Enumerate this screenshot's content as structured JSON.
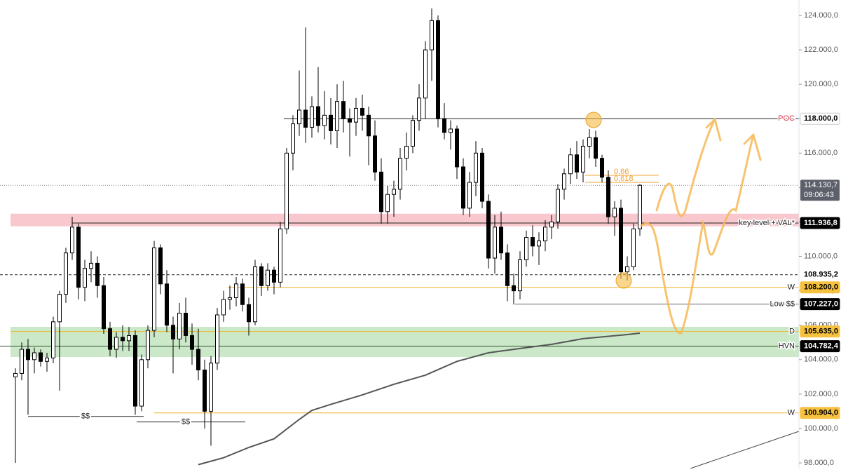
{
  "chart_data": {
    "type": "candlestick",
    "ylim": [
      97676,
      124896
    ],
    "yticks": [
      {
        "value": 98000,
        "label": "98.000,0"
      },
      {
        "value": 100000,
        "label": "100.000,0"
      },
      {
        "value": 102000,
        "label": "102.000,0"
      },
      {
        "value": 104000,
        "label": "104.000,0"
      },
      {
        "value": 106000,
        "label": "106.000,0"
      },
      {
        "value": 108000,
        "label": "108.000,0"
      },
      {
        "value": 110000,
        "label": "110.000,0"
      },
      {
        "value": 112000,
        "label": "112.000,0"
      },
      {
        "value": 114000,
        "label": "114.000,0"
      },
      {
        "value": 116000,
        "label": "116.000,0"
      },
      {
        "value": 118000,
        "label": "118.000,0"
      },
      {
        "value": 120000,
        "label": "120.000,0"
      },
      {
        "value": 122000,
        "label": "122.000,0"
      },
      {
        "value": 124000,
        "label": "124.000,0"
      }
    ],
    "up_color": "#ffffff",
    "down_color": "#000000",
    "ohlc": [
      [
        103000,
        103500,
        98000,
        103200
      ],
      [
        103200,
        105000,
        102800,
        104600
      ],
      [
        104600,
        105200,
        100800,
        104000
      ],
      [
        104000,
        104700,
        103200,
        104400
      ],
      [
        104400,
        104600,
        103600,
        103900
      ],
      [
        103900,
        104400,
        103300,
        104100
      ],
      [
        104100,
        106500,
        103800,
        106200
      ],
      [
        106200,
        108000,
        102200,
        107800
      ],
      [
        107800,
        110500,
        107300,
        110200
      ],
      [
        110200,
        112300,
        109800,
        111700
      ],
      [
        111700,
        111900,
        107500,
        108200
      ],
      [
        108200,
        109800,
        107400,
        109300
      ],
      [
        109300,
        110300,
        108500,
        109600
      ],
      [
        109600,
        110000,
        107600,
        108300
      ],
      [
        108300,
        108800,
        105500,
        105800
      ],
      [
        105800,
        106200,
        104200,
        104600
      ],
      [
        104600,
        105600,
        104100,
        105300
      ],
      [
        105300,
        106000,
        104500,
        105100
      ],
      [
        105100,
        105900,
        104500,
        105400
      ],
      [
        105400,
        105700,
        100800,
        101300
      ],
      [
        101300,
        104300,
        101000,
        104000
      ],
      [
        104000,
        106000,
        103500,
        105700
      ],
      [
        105700,
        110900,
        105300,
        110500
      ],
      [
        110500,
        110700,
        107800,
        108400
      ],
      [
        108400,
        109200,
        105600,
        106000
      ],
      [
        106000,
        106500,
        103200,
        105200
      ],
      [
        105200,
        107300,
        104600,
        106700
      ],
      [
        106700,
        107600,
        105000,
        105400
      ],
      [
        105400,
        106100,
        103700,
        104600
      ],
      [
        104600,
        105800,
        102800,
        103400
      ],
      [
        103400,
        104000,
        100000,
        101000
      ],
      [
        101000,
        104200,
        99000,
        103800
      ],
      [
        103800,
        107000,
        103400,
        106600
      ],
      [
        106600,
        108000,
        106200,
        107500
      ],
      [
        107500,
        108300,
        106900,
        107600
      ],
      [
        107600,
        108800,
        107100,
        108400
      ],
      [
        108400,
        108700,
        106800,
        107200
      ],
      [
        107200,
        107600,
        105400,
        106200
      ],
      [
        106200,
        109800,
        106000,
        109400
      ],
      [
        109400,
        109600,
        107700,
        108300
      ],
      [
        108300,
        109600,
        108000,
        109200
      ],
      [
        109200,
        109400,
        107800,
        108500
      ],
      [
        108500,
        112000,
        108200,
        111600
      ],
      [
        111600,
        116300,
        111300,
        116000
      ],
      [
        116000,
        118200,
        115000,
        117700
      ],
      [
        117700,
        120800,
        117000,
        118500
      ],
      [
        118500,
        123300,
        116600,
        117500
      ],
      [
        117500,
        119300,
        116900,
        118700
      ],
      [
        118700,
        121000,
        117200,
        117600
      ],
      [
        117600,
        119600,
        116800,
        118200
      ],
      [
        118200,
        119200,
        116500,
        117300
      ],
      [
        117300,
        120000,
        116300,
        119000
      ],
      [
        119000,
        120200,
        117200,
        118000
      ],
      [
        118000,
        118600,
        115800,
        117800
      ],
      [
        117800,
        119200,
        117000,
        118600
      ],
      [
        118600,
        119400,
        117300,
        118200
      ],
      [
        118200,
        118700,
        115300,
        117000
      ],
      [
        117000,
        117900,
        114400,
        114900
      ],
      [
        114900,
        115700,
        111900,
        112600
      ],
      [
        112600,
        114100,
        111900,
        113600
      ],
      [
        113600,
        114400,
        112300,
        113900
      ],
      [
        113900,
        116300,
        113300,
        115700
      ],
      [
        115700,
        117200,
        115000,
        116400
      ],
      [
        116400,
        118200,
        116000,
        117900
      ],
      [
        117900,
        120000,
        117300,
        119200
      ],
      [
        119200,
        122500,
        118000,
        122000
      ],
      [
        122000,
        124400,
        120200,
        123700
      ],
      [
        123700,
        124000,
        117500,
        118000
      ],
      [
        118000,
        118900,
        116800,
        117200
      ],
      [
        117200,
        117900,
        116200,
        117400
      ],
      [
        117400,
        117600,
        114500,
        115200
      ],
      [
        115200,
        115700,
        112400,
        112800
      ],
      [
        112800,
        114900,
        112300,
        114300
      ],
      [
        114300,
        116700,
        113500,
        116000
      ],
      [
        116000,
        116300,
        112800,
        113200
      ],
      [
        113200,
        113600,
        109300,
        109900
      ],
      [
        109900,
        112400,
        109000,
        111700
      ],
      [
        111700,
        112600,
        109800,
        110200
      ],
      [
        110200,
        110700,
        107400,
        108300
      ],
      [
        108300,
        109000,
        107200,
        108000
      ],
      [
        108000,
        110300,
        107500,
        109800
      ],
      [
        109800,
        111500,
        109400,
        111100
      ],
      [
        111100,
        111800,
        110000,
        110600
      ],
      [
        110600,
        111400,
        109500,
        110900
      ],
      [
        110900,
        112100,
        110300,
        111700
      ],
      [
        111700,
        112400,
        111000,
        112000
      ],
      [
        112000,
        114200,
        111600,
        113900
      ],
      [
        113900,
        115100,
        113300,
        114800
      ],
      [
        114800,
        116300,
        114200,
        115900
      ],
      [
        115900,
        116700,
        114500,
        114900
      ],
      [
        114900,
        116800,
        114300,
        116400
      ],
      [
        116400,
        117400,
        115700,
        116900
      ],
      [
        116900,
        117300,
        115200,
        115700
      ],
      [
        115700,
        115900,
        114300,
        114600
      ],
      [
        114600,
        115000,
        111900,
        112300
      ],
      [
        112300,
        113200,
        111200,
        112800
      ],
      [
        112800,
        113300,
        108700,
        109100
      ],
      [
        109100,
        110000,
        108600,
        109400
      ],
      [
        109400,
        111900,
        109200,
        111600
      ],
      [
        111600,
        114200,
        111200,
        114130.7
      ]
    ],
    "ma": {
      "color": "#555555",
      "x": [
        29,
        33,
        37,
        41,
        45,
        47,
        50,
        55,
        60,
        65,
        70,
        75,
        80,
        85,
        90,
        97,
        99
      ],
      "values": [
        97900,
        98300,
        98900,
        99400,
        100530,
        101050,
        101400,
        101950,
        102570,
        103100,
        103900,
        104400,
        104650,
        104890,
        105220,
        105460,
        105540
      ]
    },
    "zones": [
      {
        "from": 111750,
        "to": 112480,
        "color": "#f4a3ad"
      },
      {
        "from": 104155,
        "to": 105907,
        "color": "#a9dba3"
      }
    ],
    "levels": [
      {
        "label": "POC",
        "value": 118000,
        "value_label": "118.000,0",
        "color": "#222222",
        "label_color": "#e0314b",
        "tag_color": "#ffffff",
        "tag_text": "#000000"
      },
      {
        "label": "key level + VAL*",
        "value": 111936.8,
        "value_label": "111.936,8",
        "color": "#222222",
        "label_color": "#222222",
        "tag_color": "#000000",
        "tag_text": "#ffffff"
      },
      {
        "label": "W",
        "value": 108200,
        "value_label": "108.200,0",
        "color": "#f0b429",
        "label_color": "#222222",
        "tag_color": "#f5c13e",
        "tag_text": "#000000"
      },
      {
        "label": "Low $$",
        "value": 107227,
        "value_label": "107.227,0",
        "color": "#666666",
        "label_color": "#222222",
        "tag_color": "#000000",
        "tag_text": "#ffffff"
      },
      {
        "label": "D",
        "value": 105635,
        "value_label": "105.635,0",
        "color": "#f0b429",
        "label_color": "#222222",
        "tag_color": "#f5c13e",
        "tag_text": "#000000"
      },
      {
        "label": "HVN",
        "value": 104782.4,
        "value_label": "104.782,4",
        "color": "#2f4f2f",
        "label_color": "#222222",
        "tag_color": "#000000",
        "tag_text": "#ffffff"
      },
      {
        "label": "W",
        "value": 100904,
        "value_label": "100.904,0",
        "color": "#f0b429",
        "label_color": "#222222",
        "tag_color": "#f5c13e",
        "tag_text": "#000000"
      }
    ],
    "marker_line": {
      "value": 108935.2,
      "value_label": "108.935,2"
    },
    "last": {
      "value": 114130.7,
      "value_label": "114.130,7",
      "time": "09:06:43"
    },
    "fib": [
      {
        "label": "0,66",
        "value": 114710
      },
      {
        "label": "0,618",
        "value": 114300
      }
    ],
    "liquidity_marks": [
      {
        "label": "$$",
        "value": 100700
      },
      {
        "label": "$$",
        "value": 100380
      }
    ]
  }
}
